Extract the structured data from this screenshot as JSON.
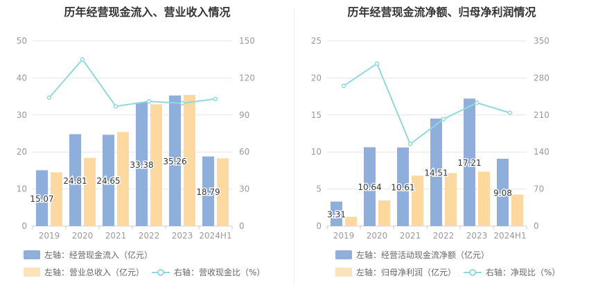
{
  "charts": [
    {
      "title": "历年经营现金流入、营业收入情况",
      "legend": {
        "bar1": "左轴：经营现金流入（亿元）",
        "bar2": "左轴：营业总收入（亿元）",
        "line": "右轴：营收现金比（%）"
      },
      "colors": {
        "bar1": "#8eaedc",
        "bar2": "#fdd9a0",
        "line": "#8fd8de"
      }
    },
    {
      "title": "历年经营现金流净额、归母净利润情况",
      "legend": {
        "bar1": "左轴：经营活动现金流净额（亿元）",
        "bar2": "左轴：归母净利润（亿元）",
        "line": "右轴：净现比（%）"
      },
      "colors": {
        "bar1": "#8eaedc",
        "bar2": "#fdd9a0",
        "line": "#8fd8de"
      }
    }
  ],
  "chart_data": [
    {
      "type": "bar",
      "title": "历年经营现金流入、营业收入情况",
      "categories": [
        "2019",
        "2020",
        "2021",
        "2022",
        "2023",
        "2024H1"
      ],
      "series": [
        {
          "name": "左轴：经营现金流入（亿元）",
          "axis": "left",
          "kind": "bar",
          "values": [
            15.07,
            24.81,
            24.65,
            33.38,
            35.26,
            18.79
          ]
        },
        {
          "name": "左轴：营业总收入（亿元）",
          "axis": "left",
          "kind": "bar",
          "values": [
            14.5,
            18.4,
            25.4,
            32.9,
            35.4,
            18.3
          ]
        },
        {
          "name": "右轴：营收现金比（%）",
          "axis": "right",
          "kind": "line",
          "values": [
            104,
            135,
            97,
            101,
            99.5,
            103
          ]
        }
      ],
      "data_labels": [
        "15.07",
        "24.81",
        "24.65",
        "33.38",
        "35.26",
        "18.79"
      ],
      "ylim_left": [
        0,
        50
      ],
      "yticks_left": [
        "0",
        "10",
        "20",
        "30",
        "40",
        "50"
      ],
      "ylim_right": [
        0,
        150
      ],
      "yticks_right": [
        "0",
        "30",
        "60",
        "90",
        "120",
        "150"
      ],
      "grid": true,
      "legend_position": "bottom"
    },
    {
      "type": "bar",
      "title": "历年经营现金流净额、归母净利润情况",
      "categories": [
        "2019",
        "2020",
        "2021",
        "2022",
        "2023",
        "2024H1"
      ],
      "series": [
        {
          "name": "左轴：经营活动现金流净额（亿元）",
          "axis": "left",
          "kind": "bar",
          "values": [
            3.31,
            10.64,
            10.61,
            14.51,
            17.21,
            9.08
          ]
        },
        {
          "name": "左轴：归母净利润（亿元）",
          "axis": "left",
          "kind": "bar",
          "values": [
            1.25,
            3.45,
            6.8,
            7.15,
            7.35,
            4.25
          ]
        },
        {
          "name": "右轴：净现比（%）",
          "axis": "right",
          "kind": "line",
          "values": [
            265,
            307,
            155,
            202,
            233,
            214
          ]
        }
      ],
      "data_labels": [
        "3.31",
        "10.64",
        "10.61",
        "14.51",
        "17.21",
        "9.08"
      ],
      "ylim_left": [
        0,
        25
      ],
      "yticks_left": [
        "0",
        "5",
        "10",
        "15",
        "20",
        "25"
      ],
      "ylim_right": [
        0,
        350
      ],
      "yticks_right": [
        "0",
        "70",
        "140",
        "210",
        "280",
        "350"
      ],
      "grid": true,
      "legend_position": "bottom"
    }
  ]
}
